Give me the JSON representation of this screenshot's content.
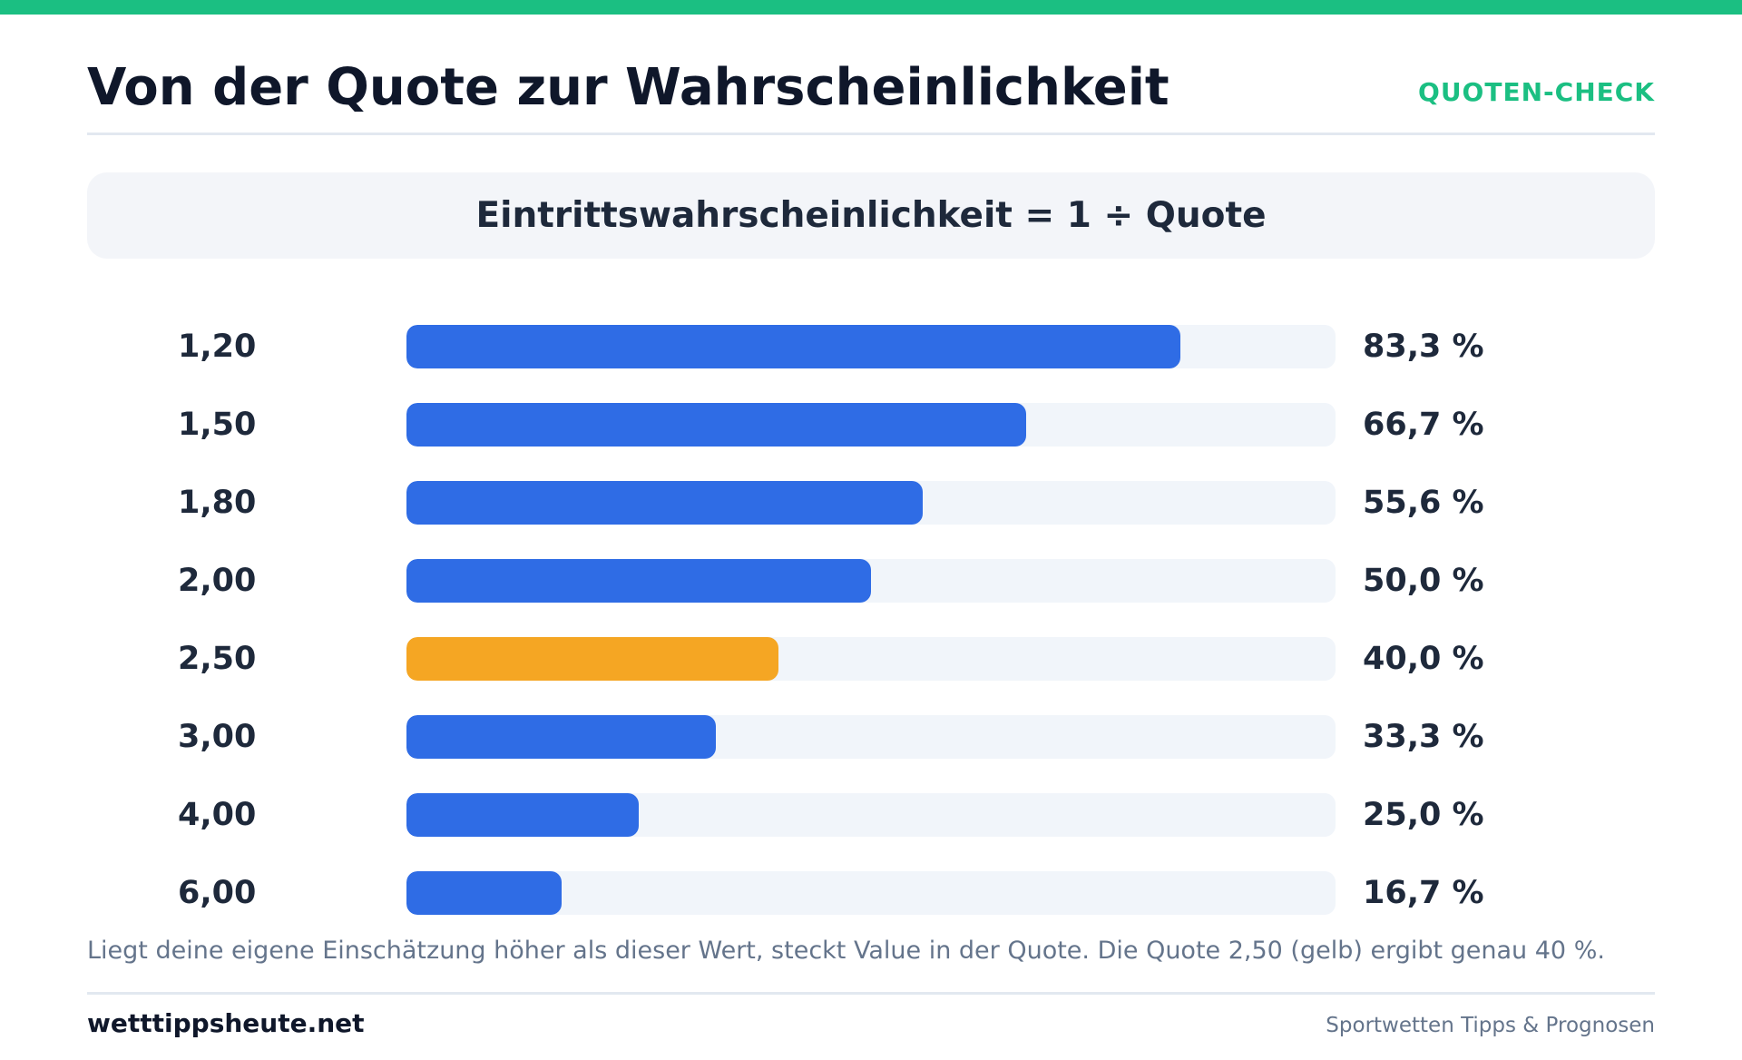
{
  "header": {
    "title": "Von der Quote zur Wahrscheinlichkeit",
    "brand_tag": "QUOTEN-CHECK"
  },
  "formula": "Eintrittswahrscheinlichkeit = 1 ÷ Quote",
  "note": "Liegt deine eigene Einschätzung höher als dieser Wert, steckt Value in der Quote. Die Quote 2,50 (gelb) ergibt genau 40 %.",
  "footer": {
    "brand": "wetttippsheute.net",
    "tagline": "Sportwetten Tipps & Prognosen"
  },
  "colors": {
    "accent": "#1bbf82",
    "bar": "#2f6ce5",
    "highlight": "#f5a623",
    "track": "#f1f5fa"
  },
  "chart_data": {
    "type": "bar",
    "orientation": "horizontal",
    "categories": [
      "1,20",
      "1,50",
      "1,80",
      "2,00",
      "2,50",
      "3,00",
      "4,00",
      "6,00"
    ],
    "values": [
      83.3,
      66.7,
      55.6,
      50.0,
      40.0,
      33.3,
      25.0,
      16.7
    ],
    "value_labels": [
      "83,3 %",
      "66,7 %",
      "55,6 %",
      "50,0 %",
      "40,0 %",
      "33,3 %",
      "25,0 %",
      "16,7 %"
    ],
    "highlight_category": "2,50",
    "xlim": [
      0,
      100
    ],
    "grid": false
  }
}
